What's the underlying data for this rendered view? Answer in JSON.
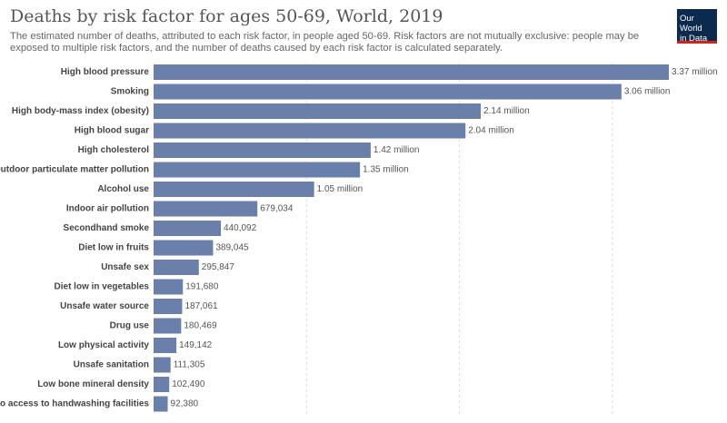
{
  "header": {
    "title": "Deaths by risk factor for ages 50-69, World, 2019",
    "subtitle": "The estimated number of deaths, attributed to each risk factor, in people aged 50-69. Risk factors are not mutually exclusive: people may be exposed to multiple risk factors, and the number of deaths caused by each risk factor is calculated separately."
  },
  "logo": {
    "line1": "Our World",
    "line2": "in Data"
  },
  "colors": {
    "bar": "#6b7fab",
    "logo_bg": "#0c2a4d",
    "logo_accent": "#ce261e"
  },
  "chart_data": {
    "type": "bar",
    "orientation": "horizontal",
    "title": "Deaths by risk factor for ages 50-69, World, 2019",
    "categories": [
      "High blood pressure",
      "Smoking",
      "High body-mass index (obesity)",
      "High blood sugar",
      "High cholesterol",
      "Outdoor particulate matter pollution",
      "Alcohol use",
      "Indoor air pollution",
      "Secondhand smoke",
      "Diet low in fruits",
      "Unsafe sex",
      "Diet low in vegetables",
      "Unsafe water source",
      "Drug use",
      "Low physical activity",
      "Unsafe sanitation",
      "Low bone mineral density",
      "No access to handwashing facilities"
    ],
    "values": [
      3370000,
      3060000,
      2140000,
      2040000,
      1420000,
      1350000,
      1050000,
      679034,
      440092,
      389045,
      295847,
      191680,
      187061,
      180469,
      149142,
      111305,
      102490,
      92380
    ],
    "labels": [
      "3.37 million",
      "3.06 million",
      "2.14 million",
      "2.04 million",
      "1.42 million",
      "1.35 million",
      "1.05 million",
      "679,034",
      "440,092",
      "389,045",
      "295,847",
      "191,680",
      "187,061",
      "180,469",
      "149,142",
      "111,305",
      "102,490",
      "92,380"
    ],
    "xlim": [
      0,
      3370000
    ],
    "grid": true,
    "legend": "none"
  }
}
